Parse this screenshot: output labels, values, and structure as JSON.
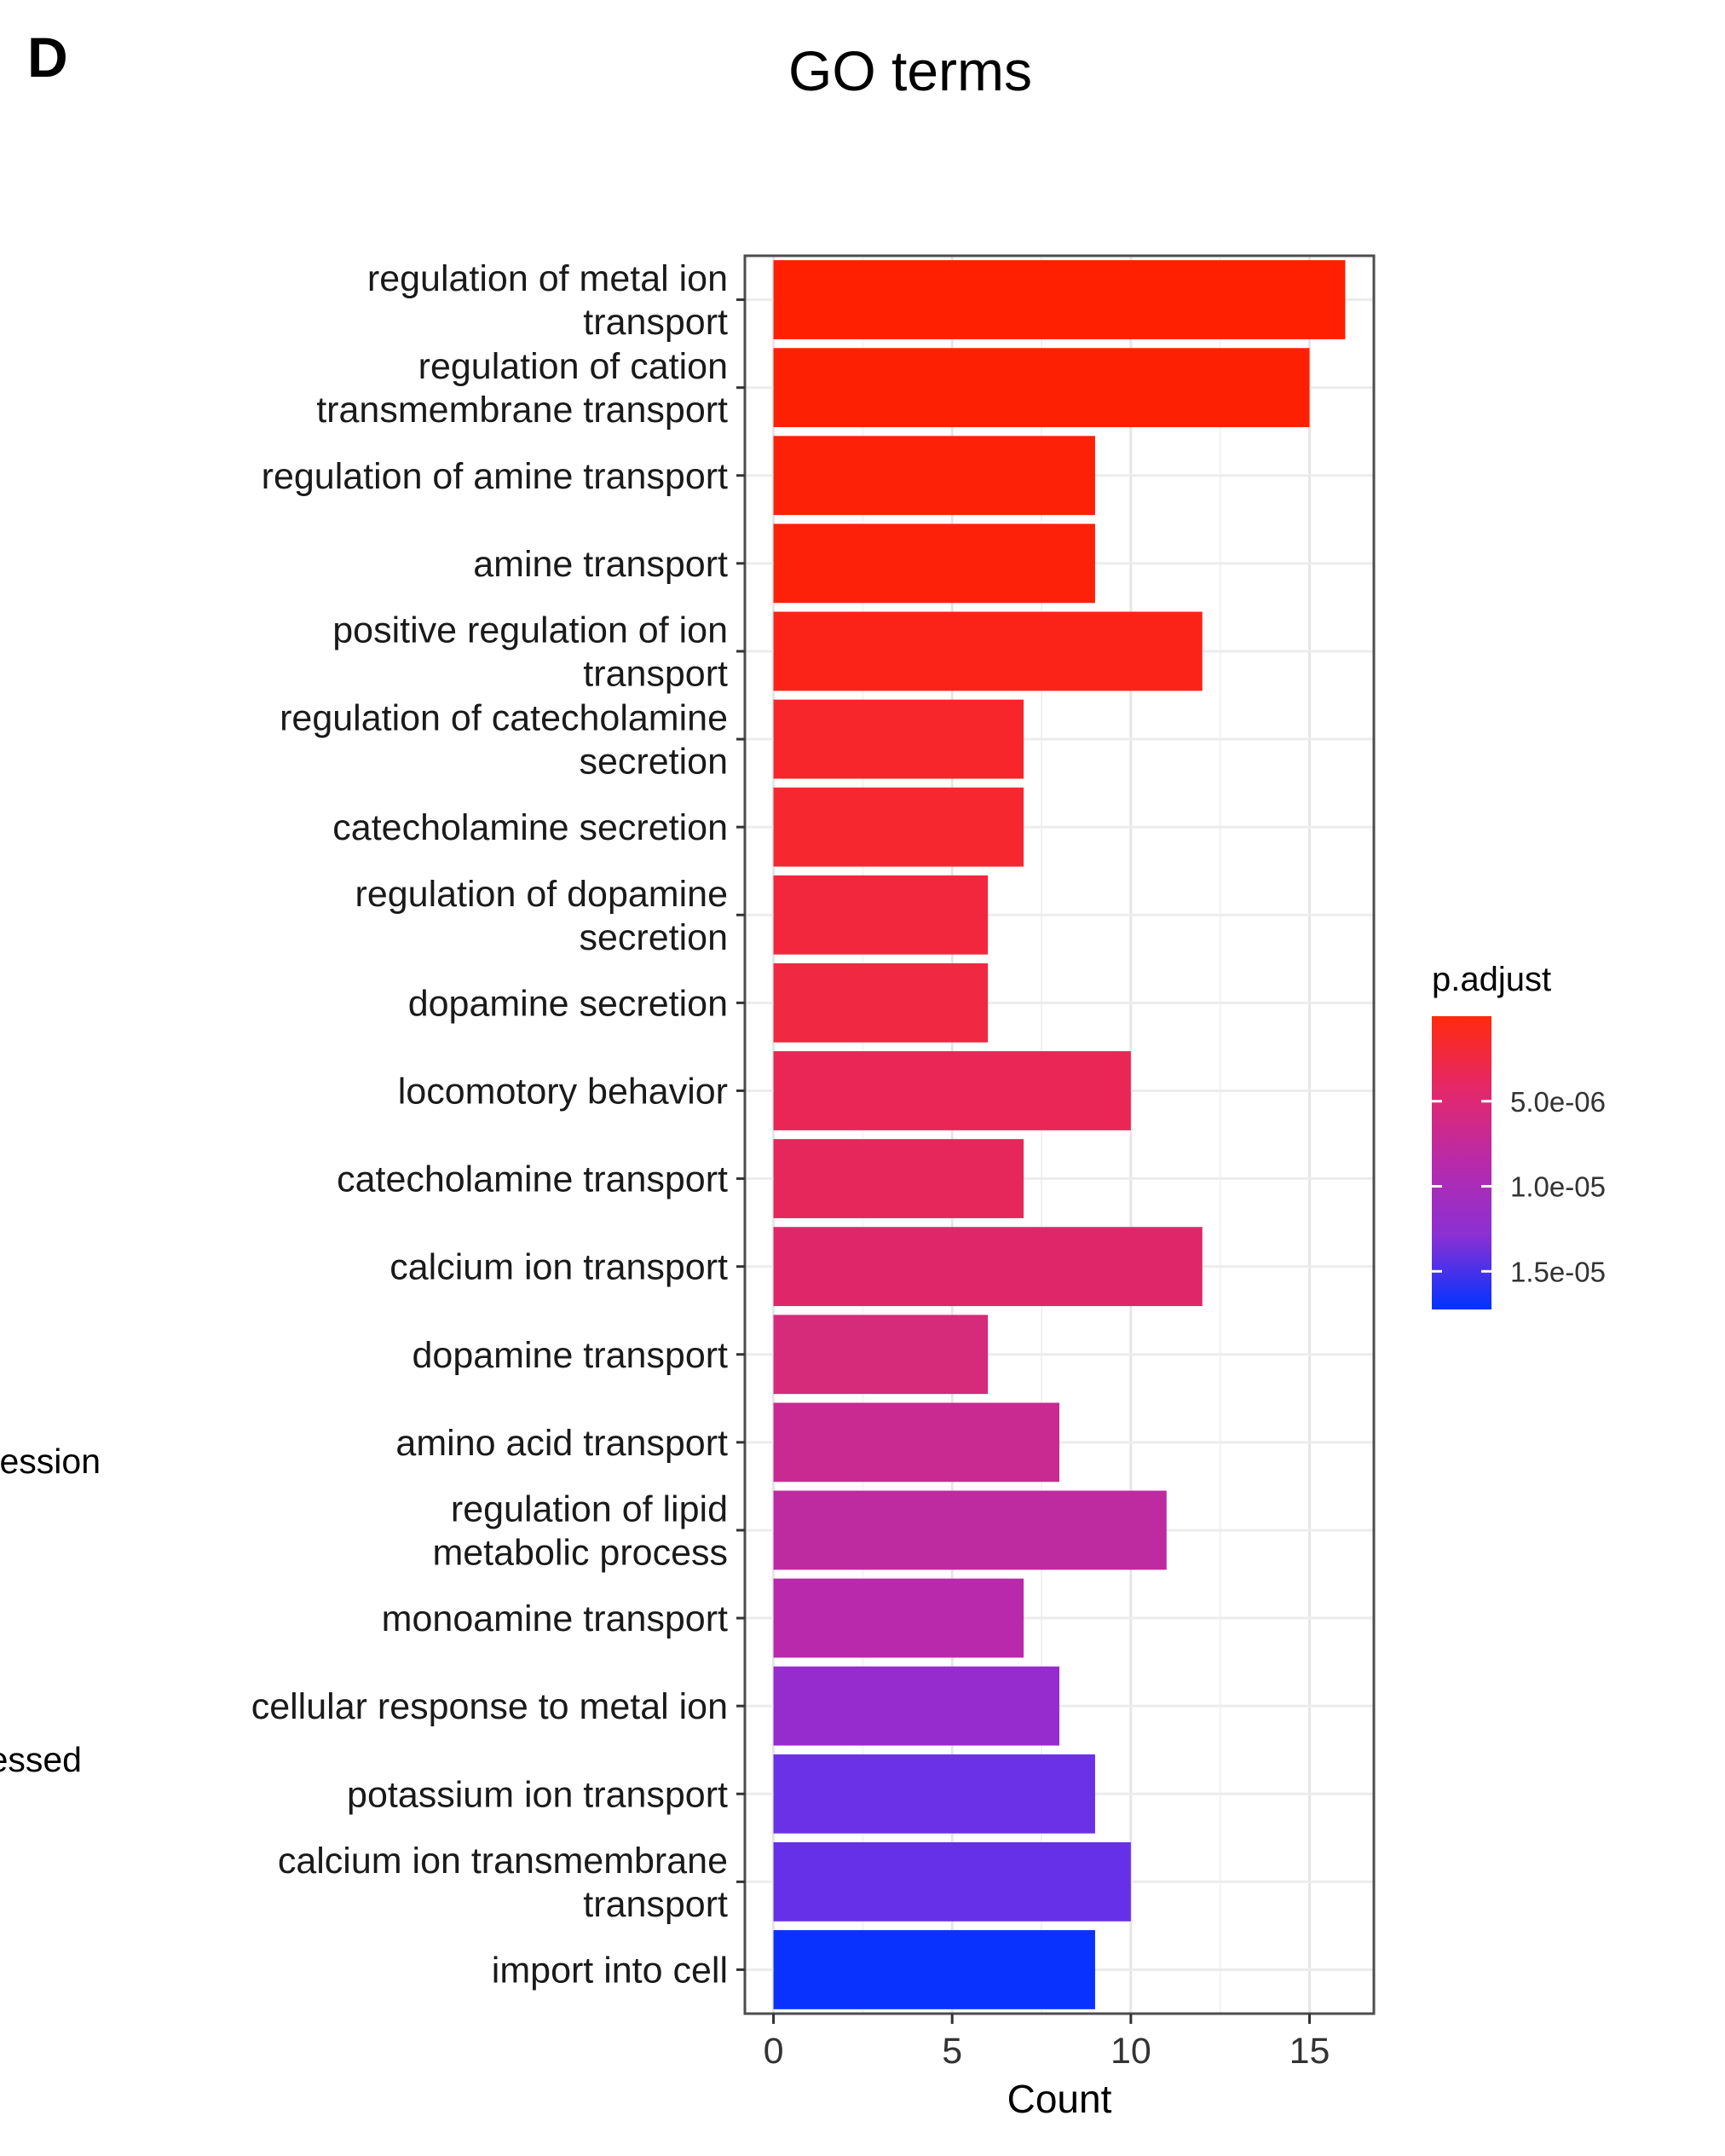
{
  "panel_letter": "D",
  "stray_text": [
    "ession",
    "essed"
  ],
  "chart_data": {
    "type": "bar",
    "orientation": "horizontal",
    "title": "GO terms",
    "xlabel": "Count",
    "ylabel": "",
    "xlim": [
      -0.8,
      16.8
    ],
    "xticks": [
      0,
      5,
      10,
      15
    ],
    "grid": true,
    "categories": [
      [
        "regulation of metal ion",
        "transport"
      ],
      [
        "regulation of cation",
        "transmembrane transport"
      ],
      [
        "regulation of amine transport"
      ],
      [
        "amine transport"
      ],
      [
        "positive regulation of ion",
        "transport"
      ],
      [
        "regulation of catecholamine",
        "secretion"
      ],
      [
        "catecholamine secretion"
      ],
      [
        "regulation of dopamine",
        "secretion"
      ],
      [
        "dopamine secretion"
      ],
      [
        "locomotory behavior"
      ],
      [
        "catecholamine transport"
      ],
      [
        "calcium ion transport"
      ],
      [
        "dopamine transport"
      ],
      [
        "amino acid transport"
      ],
      [
        "regulation of lipid",
        "metabolic process"
      ],
      [
        "monoamine transport"
      ],
      [
        "cellular response to metal ion"
      ],
      [
        "potassium ion transport"
      ],
      [
        "calcium ion transmembrane",
        "transport"
      ],
      [
        "import into cell"
      ]
    ],
    "values": [
      16,
      15,
      9,
      9,
      12,
      7,
      7,
      6,
      6,
      10,
      7,
      12,
      6,
      8,
      11,
      7,
      8,
      9,
      10,
      9
    ],
    "bar_colors": [
      "#fe2000",
      "#fe2002",
      "#fd2108",
      "#fd2109",
      "#fb2318",
      "#f7262b",
      "#f6272e",
      "#f2273e",
      "#f12842",
      "#e92656",
      "#e6275c",
      "#df2668",
      "#d62a7a",
      "#c82a92",
      "#be2aa0",
      "#b82aab",
      "#972cce",
      "#6a31e6",
      "#6630e8",
      "#0a32fe"
    ],
    "legend": {
      "title": "p.adjust",
      "colors": [
        "#ff2a0d",
        "#e4286a",
        "#b82aab",
        "#8a30d4",
        "#0033ff"
      ],
      "tick_labels": [
        "5.0e-06",
        "1.0e-05",
        "1.5e-05"
      ],
      "tick_positions": [
        0.29,
        0.58,
        0.87
      ]
    }
  }
}
